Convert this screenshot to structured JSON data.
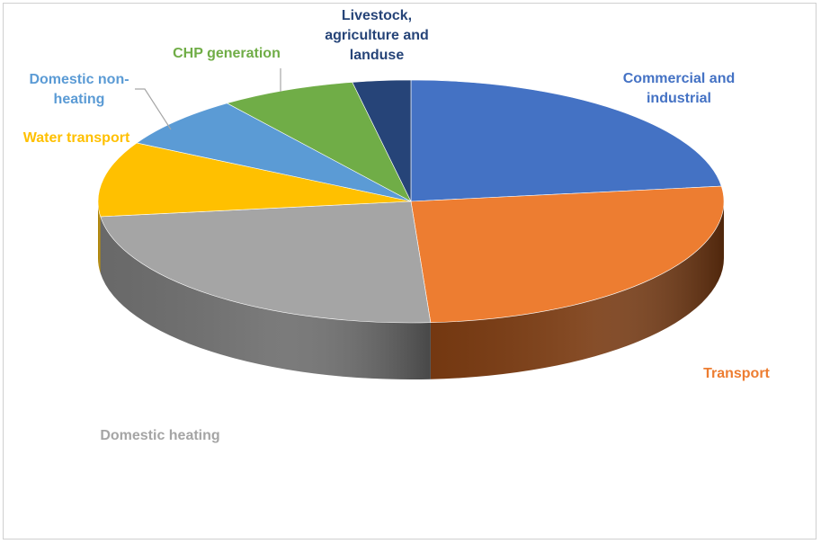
{
  "chart_data": {
    "type": "pie",
    "style": "3d",
    "legend": "none",
    "slices": [
      {
        "label": "Commercial and industrial",
        "value": 23,
        "color": "#4472C4",
        "side_color": "#2a4a85"
      },
      {
        "label": "Transport",
        "value": 26,
        "color": "#ED7D31",
        "side_color": "#7a3b12"
      },
      {
        "label": "Domestic heating",
        "value": 24,
        "color": "#A5A5A5",
        "side_color": "#6e6e6e"
      },
      {
        "label": "Water transport",
        "value": 10,
        "color": "#FFC000",
        "side_color": "#b38600"
      },
      {
        "label": "Domestic non-heating",
        "value": 7,
        "color": "#5B9BD5",
        "side_color": "#3a6f9e"
      },
      {
        "label": "CHP generation",
        "value": 7,
        "color": "#70AD47",
        "side_color": "#4a7a2c"
      },
      {
        "label": "Livestock, agriculture and landuse",
        "value": 3,
        "color": "#264478",
        "side_color": "#17294a"
      }
    ]
  }
}
